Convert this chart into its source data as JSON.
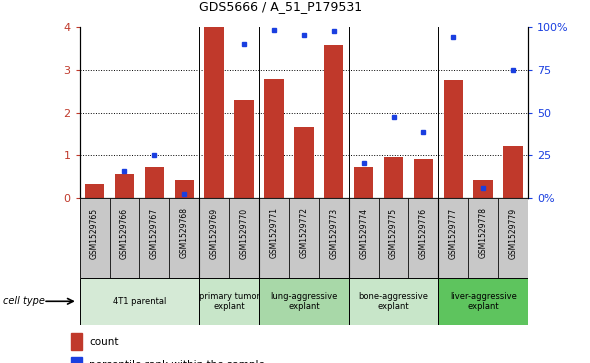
{
  "title": "GDS5666 / A_51_P179531",
  "samples": [
    "GSM1529765",
    "GSM1529766",
    "GSM1529767",
    "GSM1529768",
    "GSM1529769",
    "GSM1529770",
    "GSM1529771",
    "GSM1529772",
    "GSM1529773",
    "GSM1529774",
    "GSM1529775",
    "GSM1529776",
    "GSM1529777",
    "GSM1529778",
    "GSM1529779"
  ],
  "counts": [
    0.32,
    0.55,
    0.72,
    0.42,
    4.0,
    2.3,
    2.78,
    1.65,
    3.58,
    0.72,
    0.95,
    0.92,
    2.76,
    0.42,
    1.22
  ],
  "percentiles": [
    null,
    15.5,
    25.0,
    2.5,
    null,
    90.0,
    98.5,
    95.5,
    98.0,
    20.5,
    47.5,
    38.5,
    94.0,
    5.5,
    75.0
  ],
  "cell_types": [
    {
      "label": "4T1 parental",
      "start": 0,
      "end": 3,
      "color": "#d5ead6"
    },
    {
      "label": "primary tumor\nexplant",
      "start": 4,
      "end": 5,
      "color": "#c8e6c9"
    },
    {
      "label": "lung-aggressive\nexplant",
      "start": 6,
      "end": 8,
      "color": "#a8d8a8"
    },
    {
      "label": "bone-aggressive\nexplant",
      "start": 9,
      "end": 11,
      "color": "#c8e6c9"
    },
    {
      "label": "liver-aggressive\nexplant",
      "start": 12,
      "end": 14,
      "color": "#5ec45e"
    }
  ],
  "bar_color": "#c0392b",
  "dot_color": "#1a3fe0",
  "left_ylim": [
    0,
    4
  ],
  "right_ylim": [
    0,
    100
  ],
  "left_yticks": [
    0,
    1,
    2,
    3,
    4
  ],
  "right_yticks": [
    0,
    25,
    50,
    75,
    100
  ],
  "right_yticklabels": [
    "0",
    "25",
    "50",
    "75",
    "100%"
  ],
  "sample_row_color": "#c8c8c8",
  "group_boundaries": [
    3.5,
    5.5,
    8.5,
    11.5
  ]
}
